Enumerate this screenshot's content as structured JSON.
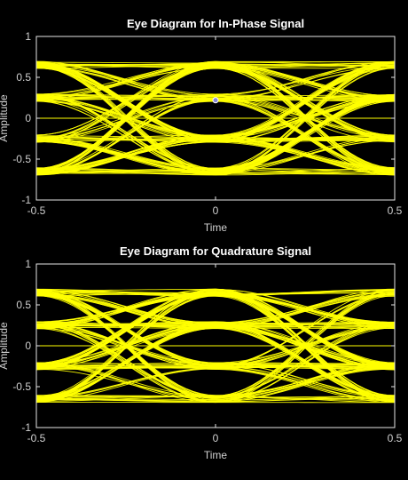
{
  "colors": {
    "background": "#000000",
    "axes_background": "#000000",
    "axes_edge": "#e6e6e6",
    "trace": "#ffff00",
    "text": "#ffffff",
    "marker": "#8a8ad8"
  },
  "chart_data": [
    {
      "type": "line",
      "name": "eye-diagram-in-phase",
      "title": "Eye Diagram for In-Phase Signal",
      "xlabel": "Time",
      "ylabel": "Amplitude",
      "xlim": [
        -0.5,
        0.5
      ],
      "ylim": [
        -1,
        1
      ],
      "xticks": [
        -0.5,
        0,
        0.5
      ],
      "xtick_labels": [
        "-0.5",
        "0",
        "0.5"
      ],
      "yticks": [
        -1,
        -0.5,
        0,
        0.5,
        1
      ],
      "ytick_labels": [
        "-1",
        "-0.5",
        "0",
        "0.5",
        "1"
      ],
      "grid": false,
      "trace_color": "#ffff00",
      "levels": [
        -0.65,
        -0.25,
        0.25,
        0.65
      ],
      "center_line_y": 0,
      "marker_point": {
        "x": 0,
        "y": 0.22
      }
    },
    {
      "type": "line",
      "name": "eye-diagram-quadrature",
      "title": "Eye Diagram for Quadrature Signal",
      "xlabel": "Time",
      "ylabel": "Amplitude",
      "xlim": [
        -0.5,
        0.5
      ],
      "ylim": [
        -1,
        1
      ],
      "xticks": [
        -0.5,
        0,
        0.5
      ],
      "xtick_labels": [
        "-0.5",
        "0",
        "0.5"
      ],
      "yticks": [
        -1,
        -0.5,
        0,
        0.5,
        1
      ],
      "ytick_labels": [
        "-1",
        "-0.5",
        "0",
        "0.5",
        "1"
      ],
      "grid": false,
      "trace_color": "#ffff00",
      "levels": [
        -0.65,
        -0.25,
        0.25,
        0.65
      ],
      "center_line_y": 0,
      "marker_point": null
    }
  ]
}
